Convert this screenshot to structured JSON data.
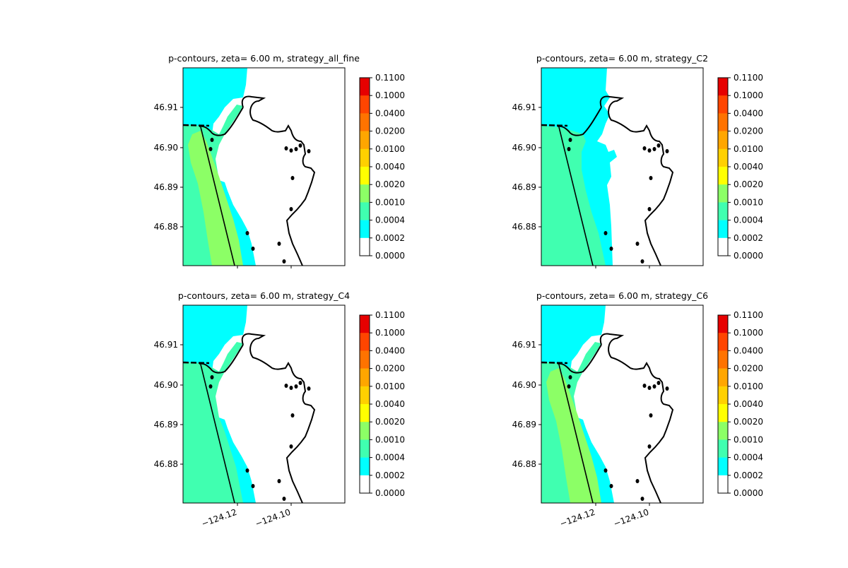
{
  "chart_data": [
    {
      "type": "heatmap",
      "title": "p-contours, zeta= 6.00 m, strategy_all_fine",
      "ytick_labels": [
        "46.91",
        "46.90",
        "46.89",
        "46.88"
      ],
      "xtick_labels": [],
      "colorbar": {
        "levels": [
          "0.1100",
          "0.1000",
          "0.0400",
          "0.0200",
          "0.0100",
          "0.0040",
          "0.0020",
          "0.0010",
          "0.0004",
          "0.0002",
          "0.0000"
        ],
        "colors": [
          "#e60000",
          "#ff4500",
          "#ff7300",
          "#ffa600",
          "#ffd000",
          "#ffff00",
          "#8cff66",
          "#40ffb0",
          "#00ffff",
          "#ffffff"
        ]
      },
      "fields": {
        "strip": "#8cff66",
        "cyan_extent": "large"
      }
    },
    {
      "type": "heatmap",
      "title": "p-contours, zeta= 6.00 m, strategy_C2",
      "ytick_labels": [
        "46.91",
        "46.90",
        "46.89",
        "46.88"
      ],
      "xtick_labels": [],
      "colorbar": {
        "levels": [
          "0.1100",
          "0.1000",
          "0.0400",
          "0.0200",
          "0.0100",
          "0.0040",
          "0.0020",
          "0.0010",
          "0.0004",
          "0.0002",
          "0.0000"
        ],
        "colors": [
          "#e60000",
          "#ff4500",
          "#ff7300",
          "#ffa600",
          "#ffd000",
          "#ffff00",
          "#8cff66",
          "#40ffb0",
          "#00ffff",
          "#ffffff"
        ]
      },
      "fields": {
        "strip": "",
        "cyan_extent": "wide"
      }
    },
    {
      "type": "heatmap",
      "title": "p-contours, zeta= 6.00 m, strategy_C4",
      "ytick_labels": [
        "46.91",
        "46.90",
        "46.89",
        "46.88"
      ],
      "xtick_labels": [
        "−124.12",
        "−124.10"
      ],
      "colorbar": {
        "levels": [
          "0.1100",
          "0.1000",
          "0.0400",
          "0.0200",
          "0.0100",
          "0.0040",
          "0.0020",
          "0.0010",
          "0.0004",
          "0.0002",
          "0.0000"
        ],
        "colors": [
          "#e60000",
          "#ff4500",
          "#ff7300",
          "#ffa600",
          "#ffd000",
          "#ffff00",
          "#8cff66",
          "#40ffb0",
          "#00ffff",
          "#ffffff"
        ]
      },
      "fields": {
        "strip": "",
        "cyan_extent": "large"
      }
    },
    {
      "type": "heatmap",
      "title": "p-contours, zeta= 6.00 m, strategy_C6",
      "ytick_labels": [
        "46.91",
        "46.90",
        "46.89",
        "46.88"
      ],
      "xtick_labels": [
        "−124.12",
        "−124.10"
      ],
      "colorbar": {
        "levels": [
          "0.1100",
          "0.1000",
          "0.0400",
          "0.0200",
          "0.0100",
          "0.0040",
          "0.0020",
          "0.0010",
          "0.0004",
          "0.0002",
          "0.0000"
        ],
        "colors": [
          "#e60000",
          "#ff4500",
          "#ff7300",
          "#ffa600",
          "#ffd000",
          "#ffff00",
          "#8cff66",
          "#40ffb0",
          "#00ffff",
          "#ffffff"
        ]
      },
      "fields": {
        "strip": "#8cff66",
        "cyan_extent": "large"
      }
    }
  ]
}
